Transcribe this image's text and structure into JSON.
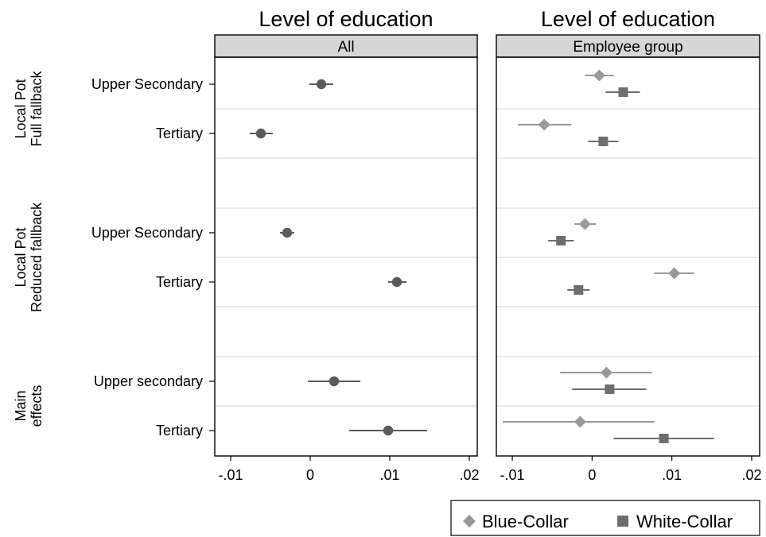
{
  "chart_data": {
    "type": "scatter",
    "subtype": "coefficient-plot",
    "panel_title": "Level of education",
    "panels": [
      {
        "title": "Level of education",
        "strip_label": "All",
        "xlim": [
          -0.012,
          0.021
        ],
        "xticks": [
          -0.01,
          0,
          0.01,
          0.02
        ],
        "xtick_labels": [
          "-.01",
          "0",
          ".01",
          ".02"
        ],
        "series": [
          {
            "name": "",
            "marker": "circle",
            "color": "#5a5a5a",
            "points": [
              {
                "group": "Local Pot Full fallback",
                "row": "Upper Secondary",
                "estimate": 0.0014,
                "ci": [
                  -0.0001,
                  0.0029
                ]
              },
              {
                "group": "Local Pot Full fallback",
                "row": "Tertiary",
                "estimate": -0.0062,
                "ci": [
                  -0.0076,
                  -0.0047
                ]
              },
              {
                "group": "Local Pot Reduced fallback",
                "row": "Upper Secondary",
                "estimate": -0.0029,
                "ci": [
                  -0.0038,
                  -0.002
                ]
              },
              {
                "group": "Local Pot Reduced fallback",
                "row": "Tertiary",
                "estimate": 0.0109,
                "ci": [
                  0.0098,
                  0.0121
                ]
              },
              {
                "group": "Main effects",
                "row": "Upper secondary",
                "estimate": 0.003,
                "ci": [
                  -0.0003,
                  0.0063
                ]
              },
              {
                "group": "Main effects",
                "row": "Tertiary",
                "estimate": 0.0098,
                "ci": [
                  0.0049,
                  0.0147
                ]
              }
            ]
          }
        ]
      },
      {
        "title": "Level of education",
        "strip_label": "Employee group",
        "xlim": [
          -0.012,
          0.021
        ],
        "xticks": [
          -0.01,
          0,
          0.01,
          0.02
        ],
        "xtick_labels": [
          "-.01",
          "0",
          ".01",
          ".02"
        ],
        "series": [
          {
            "name": "Blue-Collar",
            "marker": "diamond",
            "color": "#9a9a9a",
            "points": [
              {
                "group": "Local Pot Full fallback",
                "row": "Upper Secondary",
                "estimate": 0.0009,
                "ci": [
                  -0.0009,
                  0.0027
                ]
              },
              {
                "group": "Local Pot Full fallback",
                "row": "Tertiary",
                "estimate": -0.006,
                "ci": [
                  -0.0093,
                  -0.0026
                ]
              },
              {
                "group": "Local Pot Reduced fallback",
                "row": "Upper Secondary",
                "estimate": -0.0009,
                "ci": [
                  -0.0022,
                  0.0005
                ]
              },
              {
                "group": "Local Pot Reduced fallback",
                "row": "Tertiary",
                "estimate": 0.0103,
                "ci": [
                  0.0078,
                  0.0128
                ]
              },
              {
                "group": "Main effects",
                "row": "Upper secondary",
                "estimate": 0.0018,
                "ci": [
                  -0.004,
                  0.0075
                ]
              },
              {
                "group": "Main effects",
                "row": "Tertiary",
                "estimate": -0.0015,
                "ci": [
                  -0.0112,
                  0.0078
                ]
              }
            ]
          },
          {
            "name": "White-Collar",
            "marker": "square",
            "color": "#6e6e6e",
            "points": [
              {
                "group": "Local Pot Full fallback",
                "row": "Upper Secondary",
                "estimate": 0.0039,
                "ci": [
                  0.0017,
                  0.006
                ]
              },
              {
                "group": "Local Pot Full fallback",
                "row": "Tertiary",
                "estimate": 0.0014,
                "ci": [
                  -0.0005,
                  0.0033
                ]
              },
              {
                "group": "Local Pot Reduced fallback",
                "row": "Upper Secondary",
                "estimate": -0.0039,
                "ci": [
                  -0.0055,
                  -0.0023
                ]
              },
              {
                "group": "Local Pot Reduced fallback",
                "row": "Tertiary",
                "estimate": -0.0017,
                "ci": [
                  -0.0031,
                  -0.0003
                ]
              },
              {
                "group": "Main effects",
                "row": "Upper secondary",
                "estimate": 0.0022,
                "ci": [
                  -0.0025,
                  0.0068
                ]
              },
              {
                "group": "Main effects",
                "row": "Tertiary",
                "estimate": 0.009,
                "ci": [
                  0.0027,
                  0.0153
                ]
              }
            ]
          }
        ]
      }
    ],
    "groups": [
      {
        "label": "Local Pot\nFull fallback",
        "rows": [
          "Upper Secondary",
          "Tertiary"
        ]
      },
      {
        "label": "Local Pot\nReduced fallback",
        "rows": [
          "Upper Secondary",
          "Tertiary"
        ]
      },
      {
        "label": "Main\neffects",
        "rows": [
          "Upper secondary",
          "Tertiary"
        ]
      }
    ],
    "legend": {
      "placement": "bottom-right",
      "entries": [
        {
          "label": "Blue-Collar",
          "marker": "diamond",
          "color": "#9a9a9a"
        },
        {
          "label": "White-Collar",
          "marker": "square",
          "color": "#6e6e6e"
        }
      ]
    },
    "grid": true,
    "colors": {
      "strip_fill": "#d6d6d6",
      "grid": "#e3e3e3",
      "axis": "#000000"
    }
  }
}
